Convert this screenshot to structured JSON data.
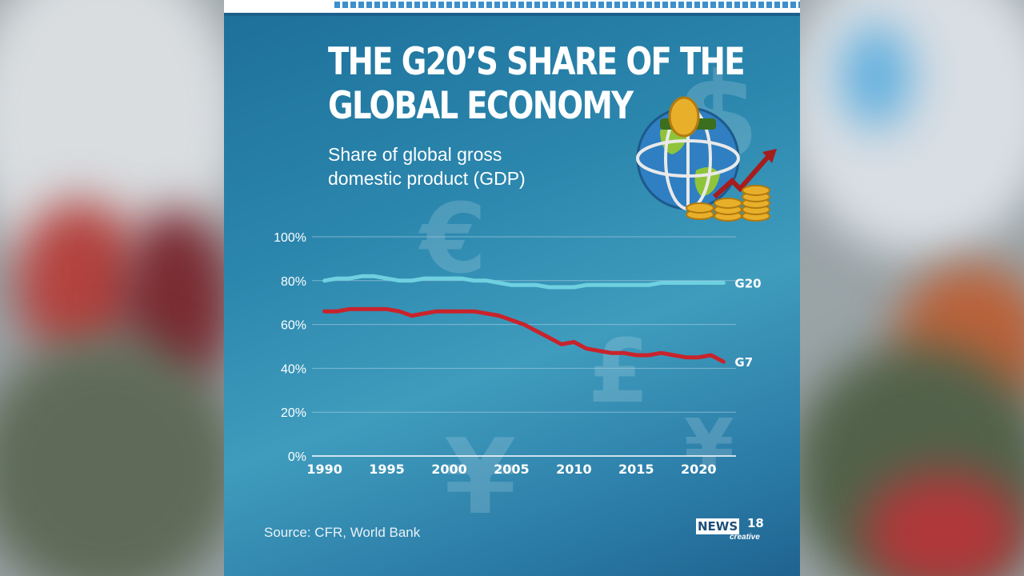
{
  "infographic": {
    "title_line1": "THE G20’S SHARE OF THE",
    "title_line2": "GLOBAL ECONOMY",
    "subtitle_line1": "Share of global gross",
    "subtitle_line2": "domestic product (GDP)",
    "source": "Source: CFR, World Bank",
    "logo": {
      "news": "NEWS",
      "number": "18",
      "tagline": "creative"
    },
    "decorative_symbols": [
      "dollar-sign",
      "euro-sign",
      "pound-sign",
      "yen-sign",
      "globe-with-coins",
      "rising-arrow"
    ]
  },
  "colors": {
    "g20_line": "#6fd0e0",
    "g7_line": "#c9232b",
    "background": "#2b86ad",
    "gridline": "#9ec7dc"
  },
  "chart_data": {
    "type": "line",
    "title": "",
    "xlabel": "",
    "ylabel": "",
    "ylim": [
      0,
      100
    ],
    "xlim": [
      1989,
      2023
    ],
    "grid": true,
    "y_ticks": [
      "0%",
      "20%",
      "40%",
      "60%",
      "80%",
      "100%"
    ],
    "x_ticks": [
      "1990",
      "1995",
      "2000",
      "2005",
      "2010",
      "2015",
      "2020"
    ],
    "series": [
      {
        "name": "G20",
        "x": [
          1990,
          1991,
          1992,
          1993,
          1994,
          1995,
          1996,
          1997,
          1998,
          1999,
          2000,
          2001,
          2002,
          2003,
          2004,
          2005,
          2006,
          2007,
          2008,
          2009,
          2010,
          2011,
          2012,
          2013,
          2014,
          2015,
          2016,
          2017,
          2018,
          2019,
          2020,
          2021,
          2022
        ],
        "y": [
          80,
          81,
          81,
          82,
          82,
          81,
          80,
          80,
          81,
          81,
          81,
          81,
          80,
          80,
          79,
          78,
          78,
          78,
          77,
          77,
          77,
          78,
          78,
          78,
          78,
          78,
          78,
          79,
          79,
          79,
          79,
          79,
          79
        ]
      },
      {
        "name": "G7",
        "x": [
          1990,
          1991,
          1992,
          1993,
          1994,
          1995,
          1996,
          1997,
          1998,
          1999,
          2000,
          2001,
          2002,
          2003,
          2004,
          2005,
          2006,
          2007,
          2008,
          2009,
          2010,
          2011,
          2012,
          2013,
          2014,
          2015,
          2016,
          2017,
          2018,
          2019,
          2020,
          2021,
          2022
        ],
        "y": [
          66,
          66,
          67,
          67,
          67,
          67,
          66,
          64,
          65,
          66,
          66,
          66,
          66,
          65,
          64,
          62,
          60,
          57,
          54,
          51,
          52,
          49,
          48,
          47,
          47,
          46,
          46,
          47,
          46,
          45,
          45,
          46,
          43
        ]
      }
    ]
  }
}
